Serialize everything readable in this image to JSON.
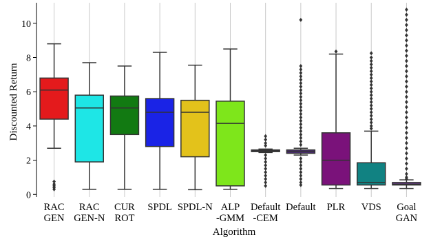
{
  "chart_data": {
    "type": "box",
    "xlabel": "Algorithm",
    "ylabel": "Discounted Return",
    "ylim": [
      -0.15,
      11.2
    ],
    "yticks": [
      0,
      2,
      4,
      6,
      8,
      10
    ],
    "grid": "vertical",
    "categories": [
      {
        "label": [
          "RAC",
          "GEN"
        ],
        "color": "#e41a1c",
        "min": 2.7,
        "q1": 4.4,
        "median": 6.1,
        "q3": 6.8,
        "max": 8.8,
        "outliers": [
          0.3,
          0.4,
          0.5,
          0.6,
          0.75
        ]
      },
      {
        "label": [
          "RAC",
          "GEN-N"
        ],
        "color": "#1ee6e6",
        "min": 0.3,
        "q1": 1.9,
        "median": 5.05,
        "q3": 5.8,
        "max": 7.7,
        "outliers": []
      },
      {
        "label": [
          "CUR",
          "ROT"
        ],
        "color": "#127a12",
        "min": 0.3,
        "q1": 3.5,
        "median": 5.05,
        "q3": 5.75,
        "max": 7.5,
        "outliers": []
      },
      {
        "label": [
          "SPDL"
        ],
        "color": "#1a23e6",
        "min": 0.3,
        "q1": 2.8,
        "median": 4.8,
        "q3": 5.6,
        "max": 8.3,
        "outliers": []
      },
      {
        "label": [
          "SPDL-N"
        ],
        "color": "#e3c21b",
        "min": 0.28,
        "q1": 2.2,
        "median": 4.8,
        "q3": 5.5,
        "max": 7.55,
        "outliers": []
      },
      {
        "label": [
          "ALP",
          "-GMM"
        ],
        "color": "#7ee61b",
        "min": 0.3,
        "q1": 0.5,
        "median": 4.15,
        "q3": 5.45,
        "max": 8.5,
        "outliers": []
      },
      {
        "label": [
          "Default",
          "-CEM"
        ],
        "color": "#4a2a73",
        "min": 2.45,
        "q1": 2.5,
        "median": 2.55,
        "q3": 2.6,
        "max": 2.65,
        "outliers": [
          3.4,
          3.2,
          3.0,
          2.85,
          2.3,
          2.1,
          1.9,
          1.7,
          1.5,
          1.3,
          1.1,
          0.9,
          0.7,
          0.5
        ]
      },
      {
        "label": [
          "Default"
        ],
        "color": "#4a2a73",
        "min": 2.3,
        "q1": 2.4,
        "median": 2.5,
        "q3": 2.6,
        "max": 2.7,
        "outliers": [
          10.2,
          7.5,
          7.3,
          7.1,
          6.9,
          6.7,
          6.5,
          6.3,
          6.1,
          5.9,
          5.7,
          5.5,
          5.3,
          5.1,
          4.9,
          4.7,
          4.5,
          4.3,
          4.1,
          3.9,
          3.7,
          3.5,
          3.3,
          3.1,
          2.9,
          2.1,
          1.9,
          1.7,
          1.5,
          1.3,
          1.1,
          0.9,
          0.7,
          0.55
        ]
      },
      {
        "label": [
          "PLR"
        ],
        "color": "#7a127a",
        "min": 0.35,
        "q1": 0.55,
        "median": 2.0,
        "q3": 3.6,
        "max": 8.2,
        "outliers": [
          8.35
        ]
      },
      {
        "label": [
          "VDS"
        ],
        "color": "#118282",
        "min": 0.35,
        "q1": 0.55,
        "median": 0.7,
        "q3": 1.85,
        "max": 3.7,
        "outliers": [
          8.25,
          8.0,
          7.8,
          7.6,
          7.4,
          7.2,
          7.0,
          6.8,
          6.6,
          6.4,
          6.2,
          6.0,
          5.8,
          5.6,
          5.4,
          5.2,
          5.0,
          4.8,
          4.6,
          4.4,
          4.2,
          4.0,
          3.85
        ]
      },
      {
        "label": [
          "Goal",
          "GAN"
        ],
        "color": "#6a3d8a",
        "min": 0.35,
        "q1": 0.55,
        "median": 0.6,
        "q3": 0.7,
        "max": 0.85,
        "outliers": [
          10.8,
          10.5,
          10.2,
          9.9,
          9.6,
          9.3,
          9.0,
          8.7,
          8.4,
          8.1,
          7.8,
          7.5,
          7.2,
          6.9,
          6.6,
          6.3,
          6.0,
          5.7,
          5.4,
          5.1,
          4.8,
          4.5,
          4.2,
          3.9,
          3.6,
          3.3,
          3.0,
          2.7,
          2.4,
          2.1,
          1.8,
          1.5,
          1.2,
          1.0,
          0.9
        ]
      }
    ]
  }
}
